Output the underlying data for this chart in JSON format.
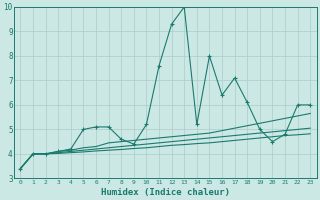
{
  "title": "",
  "xlabel": "Humidex (Indice chaleur)",
  "x_values": [
    0,
    1,
    2,
    3,
    4,
    5,
    6,
    7,
    8,
    9,
    10,
    11,
    12,
    13,
    14,
    15,
    16,
    17,
    18,
    19,
    20,
    21,
    22,
    23
  ],
  "series_main": [
    3.4,
    4.0,
    4.0,
    4.1,
    4.2,
    5.0,
    5.1,
    5.1,
    4.6,
    4.4,
    5.2,
    7.6,
    9.3,
    10.0,
    5.2,
    8.0,
    6.4,
    7.1,
    6.1,
    5.0,
    4.5,
    4.8,
    6.0,
    6.0
  ],
  "series_trend1": [
    3.4,
    4.0,
    4.0,
    4.1,
    4.15,
    4.25,
    4.3,
    4.45,
    4.5,
    4.55,
    4.6,
    4.65,
    4.7,
    4.75,
    4.8,
    4.85,
    4.95,
    5.05,
    5.15,
    5.25,
    5.35,
    5.45,
    5.55,
    5.65
  ],
  "series_trend2": [
    3.4,
    4.0,
    4.0,
    4.05,
    4.1,
    4.15,
    4.2,
    4.25,
    4.3,
    4.35,
    4.4,
    4.45,
    4.5,
    4.55,
    4.6,
    4.65,
    4.7,
    4.75,
    4.8,
    4.85,
    4.9,
    4.95,
    5.0,
    5.05
  ],
  "series_trend3": [
    3.4,
    4.0,
    4.0,
    4.02,
    4.05,
    4.08,
    4.12,
    4.15,
    4.18,
    4.22,
    4.25,
    4.3,
    4.35,
    4.38,
    4.42,
    4.45,
    4.5,
    4.55,
    4.6,
    4.65,
    4.7,
    4.75,
    4.78,
    4.82
  ],
  "line_color": "#1a7a6e",
  "bg_color": "#cce8e4",
  "grid_color": "#aaccca",
  "ylim": [
    3,
    10
  ],
  "xlim": [
    -0.5,
    23.5
  ],
  "yticks": [
    3,
    4,
    5,
    6,
    7,
    8,
    9,
    10
  ],
  "xticks": [
    0,
    1,
    2,
    3,
    4,
    5,
    6,
    7,
    8,
    9,
    10,
    11,
    12,
    13,
    14,
    15,
    16,
    17,
    18,
    19,
    20,
    21,
    22,
    23
  ]
}
